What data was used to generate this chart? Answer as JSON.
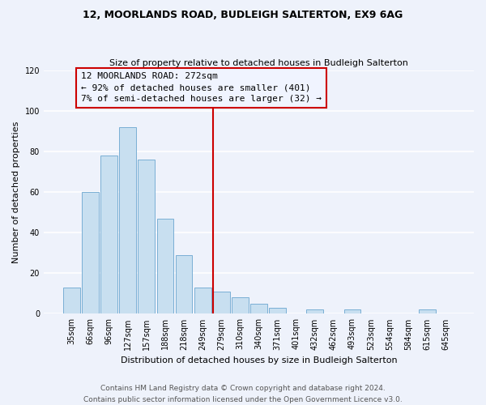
{
  "title": "12, MOORLANDS ROAD, BUDLEIGH SALTERTON, EX9 6AG",
  "subtitle": "Size of property relative to detached houses in Budleigh Salterton",
  "xlabel": "Distribution of detached houses by size in Budleigh Salterton",
  "ylabel": "Number of detached properties",
  "footnote1": "Contains HM Land Registry data © Crown copyright and database right 2024.",
  "footnote2": "Contains public sector information licensed under the Open Government Licence v3.0.",
  "categories": [
    "35sqm",
    "66sqm",
    "96sqm",
    "127sqm",
    "157sqm",
    "188sqm",
    "218sqm",
    "249sqm",
    "279sqm",
    "310sqm",
    "340sqm",
    "371sqm",
    "401sqm",
    "432sqm",
    "462sqm",
    "493sqm",
    "523sqm",
    "554sqm",
    "584sqm",
    "615sqm",
    "645sqm"
  ],
  "values": [
    13,
    60,
    78,
    92,
    76,
    47,
    29,
    13,
    11,
    8,
    5,
    3,
    0,
    2,
    0,
    2,
    0,
    0,
    0,
    2,
    0
  ],
  "bar_color": "#c8dff0",
  "bar_edge_color": "#7aafd4",
  "vline_x_index": 8,
  "vline_color": "#cc0000",
  "annotation_title": "12 MOORLANDS ROAD: 272sqm",
  "annotation_line1": "← 92% of detached houses are smaller (401)",
  "annotation_line2": "7% of semi-detached houses are larger (32) →",
  "annotation_box_edge_color": "#cc0000",
  "annotation_box_bg": "#f0f4ff",
  "ylim": [
    0,
    120
  ],
  "yticks": [
    0,
    20,
    40,
    60,
    80,
    100,
    120
  ],
  "background_color": "#eef2fb",
  "grid_color": "#ffffff",
  "title_fontsize": 9,
  "subtitle_fontsize": 8,
  "axis_label_fontsize": 8,
  "tick_fontsize": 7,
  "annotation_fontsize": 8,
  "footnote_fontsize": 6.5
}
